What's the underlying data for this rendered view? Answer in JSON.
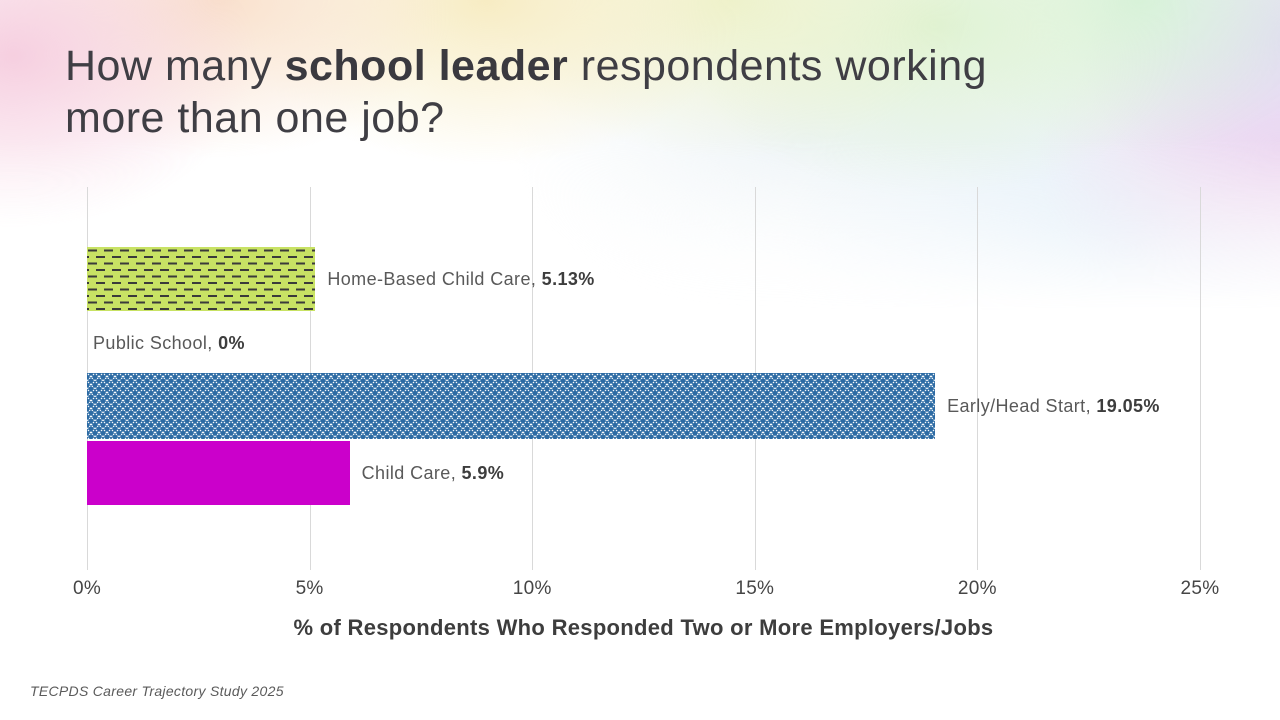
{
  "slide": {
    "title": {
      "text_before_bold": "How many ",
      "bold_text": "school leader",
      "text_after_bold": " respondents working",
      "line2": "more than one job?"
    },
    "footnote": "TECPDS Career Trajectory Study 2025",
    "title_color": "#3f3e44",
    "background_style": "pastel-rainbow-gradient-fading-to-white"
  },
  "chart_data": {
    "type": "bar",
    "orientation": "horizontal",
    "xlabel": "% of Respondents Who Responded Two or More Employers/Jobs",
    "xlim": [
      0,
      25
    ],
    "x_ticks": [
      "0%",
      "5%",
      "10%",
      "15%",
      "20%",
      "25%"
    ],
    "x_tick_values": [
      0,
      5,
      10,
      15,
      20,
      25
    ],
    "grid": "vertical-gridlines-only",
    "gridline_color": "#d9d9d9",
    "legend": "none",
    "label_separator": ", ",
    "categories": [
      "Home-Based Child Care",
      "Public School",
      "Early/Head Start",
      "Child Care"
    ],
    "values": [
      5.13,
      0,
      19.05,
      5.9
    ],
    "bars": [
      {
        "label": "Home-Based Child Care",
        "value": 5.13,
        "value_label": "5.13%",
        "fill": "#c8e264",
        "pattern": "horizontal-dashes",
        "pattern_color": "#3a3a3a"
      },
      {
        "label": "Public School",
        "value": 0,
        "value_label": "0%",
        "fill": "none",
        "pattern": "none",
        "pattern_color": "none"
      },
      {
        "label": "Early/Head Start",
        "value": 19.05,
        "value_label": "19.05%",
        "fill": "#2d6ba4",
        "pattern": "diamond-lattice",
        "pattern_color": "#ffffff"
      },
      {
        "label": "Child Care",
        "value": 5.9,
        "value_label": "5.9%",
        "fill": "#cb00cb",
        "pattern": "solid",
        "pattern_color": "none"
      }
    ],
    "category_label_color": "#595959",
    "value_label_color": "#3d3d3d",
    "tick_label_color": "#454545"
  }
}
